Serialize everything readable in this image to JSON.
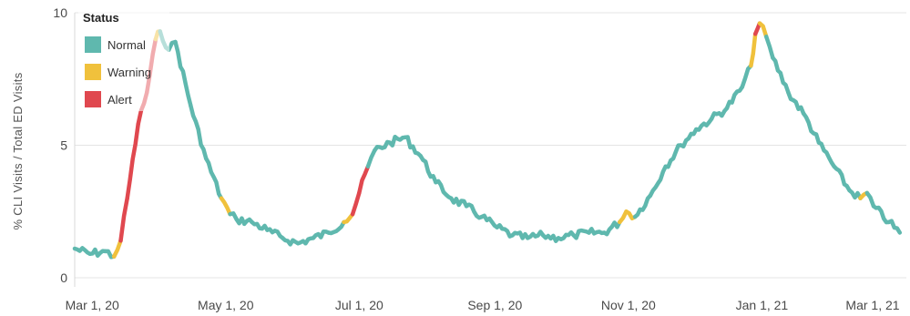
{
  "chart_data": {
    "type": "line",
    "ylabel": "% CLI Visits / Total ED Visits",
    "ylim": [
      0,
      10
    ],
    "y_ticks": [
      0,
      5,
      10
    ],
    "x_ticks": [
      "Mar 1, 20",
      "May 1, 20",
      "Jul 1, 20",
      "Sep 1, 20",
      "Nov 1, 20",
      "Jan 1, 21",
      "Mar 1, 21"
    ],
    "x_range": [
      "2020-02-22",
      "2021-03-08"
    ],
    "grid": true,
    "legend": {
      "title": "Status",
      "position": "top-left",
      "items": [
        {
          "label": "Normal",
          "color": "#5fb8ae"
        },
        {
          "label": "Warning",
          "color": "#f0c13c"
        },
        {
          "label": "Alert",
          "color": "#e0484f"
        }
      ]
    },
    "series": [
      {
        "points": [
          [
            "2020-02-22",
            1.1,
            "Normal"
          ],
          [
            "2020-02-29",
            0.9,
            "Normal"
          ],
          [
            "2020-03-07",
            1.0,
            "Normal"
          ],
          [
            "2020-03-11",
            0.8,
            "Normal"
          ],
          [
            "2020-03-14",
            1.4,
            "Warning"
          ],
          [
            "2020-03-17",
            3.0,
            "Alert"
          ],
          [
            "2020-03-22",
            5.8,
            "Alert"
          ],
          [
            "2020-03-26",
            7.0,
            "Alert"
          ],
          [
            "2020-03-30",
            9.0,
            "Alert"
          ],
          [
            "2020-04-01",
            9.3,
            "Warning"
          ],
          [
            "2020-04-05",
            8.6,
            "Normal"
          ],
          [
            "2020-04-08",
            8.9,
            "Normal"
          ],
          [
            "2020-04-15",
            6.5,
            "Normal"
          ],
          [
            "2020-04-22",
            4.5,
            "Normal"
          ],
          [
            "2020-04-29",
            3.0,
            "Normal"
          ],
          [
            "2020-05-03",
            2.4,
            "Warning"
          ],
          [
            "2020-05-06",
            2.2,
            "Normal"
          ],
          [
            "2020-05-13",
            2.1,
            "Normal"
          ],
          [
            "2020-05-20",
            1.8,
            "Normal"
          ],
          [
            "2020-05-27",
            1.5,
            "Normal"
          ],
          [
            "2020-06-03",
            1.3,
            "Normal"
          ],
          [
            "2020-06-10",
            1.5,
            "Normal"
          ],
          [
            "2020-06-17",
            1.7,
            "Normal"
          ],
          [
            "2020-06-24",
            2.1,
            "Normal"
          ],
          [
            "2020-06-28",
            2.4,
            "Warning"
          ],
          [
            "2020-07-01",
            3.2,
            "Alert"
          ],
          [
            "2020-07-05",
            4.2,
            "Alert"
          ],
          [
            "2020-07-08",
            4.8,
            "Normal"
          ],
          [
            "2020-07-15",
            5.1,
            "Normal"
          ],
          [
            "2020-07-22",
            5.3,
            "Normal"
          ],
          [
            "2020-07-29",
            4.6,
            "Normal"
          ],
          [
            "2020-08-05",
            3.6,
            "Normal"
          ],
          [
            "2020-08-12",
            3.0,
            "Normal"
          ],
          [
            "2020-08-19",
            2.7,
            "Normal"
          ],
          [
            "2020-08-26",
            2.3,
            "Normal"
          ],
          [
            "2020-09-02",
            1.9,
            "Normal"
          ],
          [
            "2020-09-09",
            1.6,
            "Normal"
          ],
          [
            "2020-09-16",
            1.5,
            "Normal"
          ],
          [
            "2020-09-23",
            1.6,
            "Normal"
          ],
          [
            "2020-09-30",
            1.5,
            "Normal"
          ],
          [
            "2020-10-07",
            1.6,
            "Normal"
          ],
          [
            "2020-10-14",
            1.7,
            "Normal"
          ],
          [
            "2020-10-21",
            1.7,
            "Normal"
          ],
          [
            "2020-10-28",
            2.1,
            "Normal"
          ],
          [
            "2020-10-31",
            2.5,
            "Warning"
          ],
          [
            "2020-11-04",
            2.3,
            "Warning"
          ],
          [
            "2020-11-11",
            3.1,
            "Normal"
          ],
          [
            "2020-11-18",
            4.2,
            "Normal"
          ],
          [
            "2020-11-25",
            5.0,
            "Normal"
          ],
          [
            "2020-12-02",
            5.6,
            "Normal"
          ],
          [
            "2020-12-09",
            6.0,
            "Normal"
          ],
          [
            "2020-12-16",
            6.4,
            "Normal"
          ],
          [
            "2020-12-23",
            7.2,
            "Normal"
          ],
          [
            "2020-12-27",
            8.0,
            "Normal"
          ],
          [
            "2020-12-29",
            9.2,
            "Warning"
          ],
          [
            "2020-12-31",
            9.6,
            "Alert"
          ],
          [
            "2021-01-03",
            9.1,
            "Warning"
          ],
          [
            "2021-01-06",
            8.3,
            "Normal"
          ],
          [
            "2021-01-13",
            7.0,
            "Normal"
          ],
          [
            "2021-01-20",
            6.2,
            "Normal"
          ],
          [
            "2021-01-27",
            5.1,
            "Normal"
          ],
          [
            "2021-02-03",
            4.2,
            "Normal"
          ],
          [
            "2021-02-10",
            3.3,
            "Normal"
          ],
          [
            "2021-02-15",
            3.0,
            "Normal"
          ],
          [
            "2021-02-18",
            3.2,
            "Warning"
          ],
          [
            "2021-02-21",
            2.7,
            "Normal"
          ],
          [
            "2021-02-28",
            2.1,
            "Normal"
          ],
          [
            "2021-03-05",
            1.7,
            "Normal"
          ]
        ]
      }
    ]
  }
}
